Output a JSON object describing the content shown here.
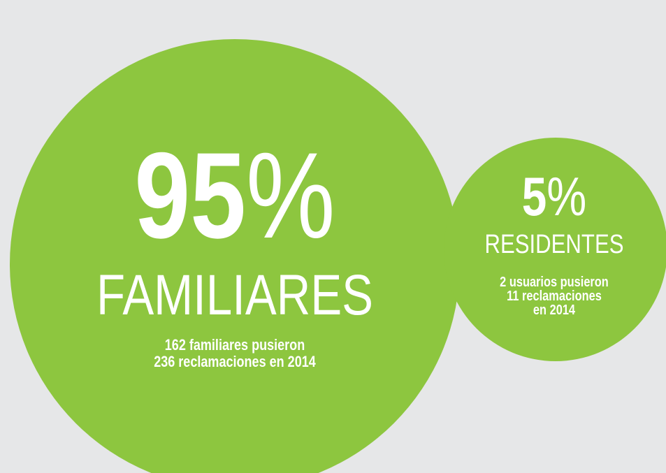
{
  "bubbles": [
    {
      "number": "95",
      "unit": "%",
      "label": "FAMILIARES",
      "lines": [
        "162 familiares pusieron",
        "236 reclamaciones en 2014"
      ]
    },
    {
      "number": "5",
      "unit": "%",
      "label": "RESIDENTES",
      "lines": [
        "2 usuarios pusieron",
        "11 reclamaciones",
        "en 2014"
      ]
    }
  ]
}
